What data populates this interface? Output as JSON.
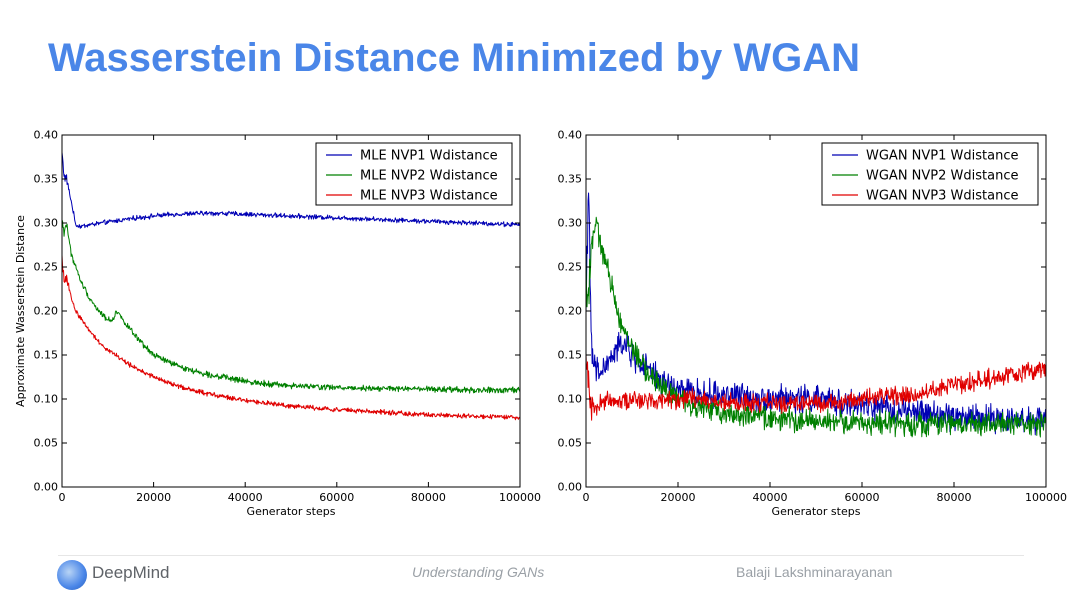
{
  "slide": {
    "title": "Wasserstein Distance Minimized by WGAN"
  },
  "footer": {
    "brand": "DeepMind",
    "center_text": "Understanding GANs",
    "right_text": "Balaji Lakshminarayanan"
  },
  "colors": {
    "title": "#4a86e8",
    "nvp1": "#0000b4",
    "nvp2": "#008000",
    "nvp3": "#e00000"
  },
  "chart_data": [
    {
      "type": "line",
      "title": "",
      "xlabel": "Generator steps",
      "ylabel": "Approximate Wasserstein Distance",
      "xlim": [
        0,
        100000
      ],
      "ylim": [
        0,
        0.4
      ],
      "xticks": [
        0,
        20000,
        40000,
        60000,
        80000,
        100000
      ],
      "xtick_labels": [
        "0",
        "20000",
        "40000",
        "60000",
        "80000",
        "100000"
      ],
      "yticks": [
        0,
        0.05,
        0.1,
        0.15,
        0.2,
        0.25,
        0.3,
        0.35,
        0.4
      ],
      "ytick_labels": [
        "0.00",
        "0.05",
        "0.10",
        "0.15",
        "0.20",
        "0.25",
        "0.30",
        "0.35",
        "0.40"
      ],
      "grid": false,
      "legend_position": "top-right",
      "series": [
        {
          "name": "MLE NVP1 Wdistance",
          "color": "#0000b4",
          "x": [
            0,
            500,
            1000,
            2000,
            3000,
            4000,
            6000,
            10000,
            15000,
            20000,
            25000,
            30000,
            35000,
            40000,
            50000,
            60000,
            70000,
            80000,
            90000,
            100000
          ],
          "y": [
            0.38,
            0.352,
            0.35,
            0.325,
            0.298,
            0.296,
            0.298,
            0.301,
            0.305,
            0.308,
            0.31,
            0.311,
            0.311,
            0.31,
            0.308,
            0.306,
            0.304,
            0.302,
            0.3,
            0.298
          ],
          "noise": 0.002
        },
        {
          "name": "MLE NVP2 Wdistance",
          "color": "#008000",
          "x": [
            0,
            500,
            1000,
            2000,
            4000,
            6000,
            8000,
            10000,
            11000,
            12000,
            14000,
            17000,
            20000,
            25000,
            30000,
            40000,
            50000,
            60000,
            70000,
            80000,
            90000,
            100000
          ],
          "y": [
            0.3,
            0.29,
            0.3,
            0.265,
            0.235,
            0.215,
            0.2,
            0.19,
            0.19,
            0.2,
            0.185,
            0.165,
            0.15,
            0.138,
            0.13,
            0.12,
            0.115,
            0.113,
            0.112,
            0.111,
            0.11,
            0.11
          ],
          "noise": 0.0025
        },
        {
          "name": "MLE NVP3 Wdistance",
          "color": "#e00000",
          "x": [
            0,
            500,
            1000,
            2000,
            3000,
            5000,
            8000,
            10000,
            15000,
            20000,
            25000,
            30000,
            40000,
            50000,
            60000,
            70000,
            80000,
            90000,
            100000
          ],
          "y": [
            0.26,
            0.23,
            0.24,
            0.215,
            0.2,
            0.185,
            0.165,
            0.156,
            0.138,
            0.125,
            0.115,
            0.108,
            0.098,
            0.092,
            0.088,
            0.085,
            0.082,
            0.08,
            0.079
          ],
          "noise": 0.002
        }
      ]
    },
    {
      "type": "line",
      "title": "",
      "xlabel": "Generator steps",
      "ylabel": "",
      "xlim": [
        0,
        100000
      ],
      "ylim": [
        0,
        0.4
      ],
      "xticks": [
        0,
        20000,
        40000,
        60000,
        80000,
        100000
      ],
      "xtick_labels": [
        "0",
        "20000",
        "40000",
        "60000",
        "80000",
        "100000"
      ],
      "yticks": [
        0,
        0.05,
        0.1,
        0.15,
        0.2,
        0.25,
        0.3,
        0.35,
        0.4
      ],
      "ytick_labels": [
        "0.00",
        "0.05",
        "0.10",
        "0.15",
        "0.20",
        "0.25",
        "0.30",
        "0.35",
        "0.40"
      ],
      "grid": false,
      "legend_position": "top-right",
      "series": [
        {
          "name": "WGAN NVP1 Wdistance",
          "color": "#0000b4",
          "x": [
            0,
            500,
            1000,
            1500,
            2500,
            4000,
            6000,
            8000,
            10000,
            12000,
            15000,
            20000,
            25000,
            30000,
            40000,
            50000,
            60000,
            70000,
            80000,
            90000,
            100000
          ],
          "y": [
            0.2,
            0.35,
            0.19,
            0.14,
            0.13,
            0.135,
            0.15,
            0.165,
            0.15,
            0.14,
            0.125,
            0.11,
            0.105,
            0.105,
            0.1,
            0.1,
            0.092,
            0.085,
            0.08,
            0.078,
            0.075
          ],
          "noise": 0.012
        },
        {
          "name": "WGAN NVP2 Wdistance",
          "color": "#008000",
          "x": [
            0,
            500,
            1000,
            2000,
            3000,
            4000,
            6000,
            8000,
            10000,
            12000,
            15000,
            20000,
            25000,
            30000,
            40000,
            50000,
            60000,
            70000,
            80000,
            90000,
            100000
          ],
          "y": [
            0.25,
            0.21,
            0.27,
            0.3,
            0.28,
            0.26,
            0.22,
            0.18,
            0.16,
            0.14,
            0.12,
            0.1,
            0.09,
            0.085,
            0.078,
            0.075,
            0.073,
            0.072,
            0.072,
            0.072,
            0.07
          ],
          "noise": 0.01
        },
        {
          "name": "WGAN NVP3 Wdistance",
          "color": "#e00000",
          "x": [
            0,
            500,
            1000,
            2000,
            3000,
            5000,
            8000,
            10000,
            15000,
            20000,
            25000,
            30000,
            40000,
            50000,
            60000,
            70000,
            80000,
            90000,
            100000
          ],
          "y": [
            0.14,
            0.12,
            0.1,
            0.09,
            0.095,
            0.1,
            0.1,
            0.098,
            0.1,
            0.1,
            0.1,
            0.095,
            0.095,
            0.095,
            0.1,
            0.105,
            0.115,
            0.125,
            0.135
          ],
          "noise": 0.008
        }
      ]
    }
  ]
}
